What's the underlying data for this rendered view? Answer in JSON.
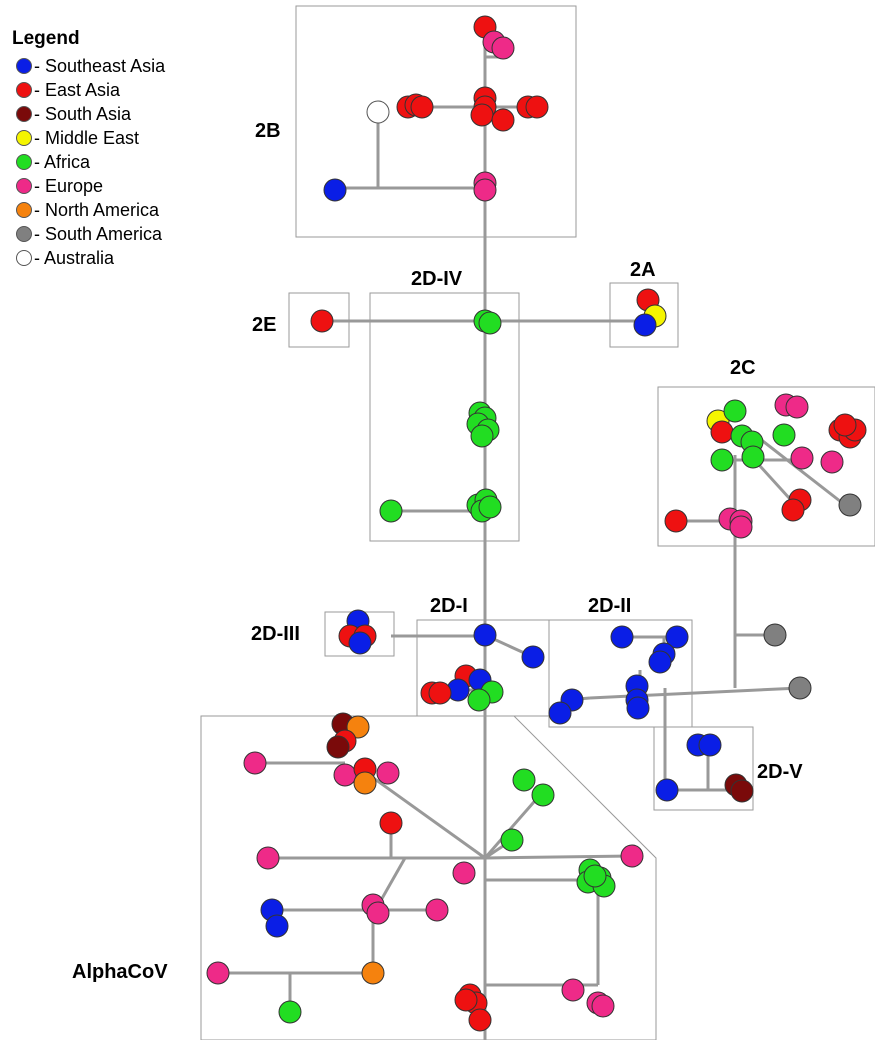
{
  "legend": {
    "title": "Legend",
    "items": [
      {
        "key": "sea",
        "label": "- Southeast Asia",
        "color": "#0a1ee6"
      },
      {
        "key": "ea",
        "label": "- East Asia",
        "color": "#ee1111"
      },
      {
        "key": "sa",
        "label": "- South Asia",
        "color": "#7a0a0a"
      },
      {
        "key": "me",
        "label": "- Middle East",
        "color": "#f5f500"
      },
      {
        "key": "af",
        "label": "- Africa",
        "color": "#22dd22"
      },
      {
        "key": "eu",
        "label": "- Europe",
        "color": "#ee2a88"
      },
      {
        "key": "na",
        "label": "- North America",
        "color": "#f5820e"
      },
      {
        "key": "sam",
        "label": "- South America",
        "color": "#808080"
      },
      {
        "key": "au",
        "label": "- Australia",
        "color": "#ffffff"
      }
    ]
  },
  "clades": [
    {
      "id": "2b",
      "label": "2B"
    },
    {
      "id": "2e",
      "label": "2E"
    },
    {
      "id": "2d-iv",
      "label": "2D-IV"
    },
    {
      "id": "2a",
      "label": "2A"
    },
    {
      "id": "2c",
      "label": "2C"
    },
    {
      "id": "2d-iii",
      "label": "2D-III"
    },
    {
      "id": "2d-i",
      "label": "2D-I"
    },
    {
      "id": "2d-ii",
      "label": "2D-II"
    },
    {
      "id": "2d-v",
      "label": "2D-V"
    },
    {
      "id": "alphacov",
      "label": "AlphaCoV"
    }
  ]
}
